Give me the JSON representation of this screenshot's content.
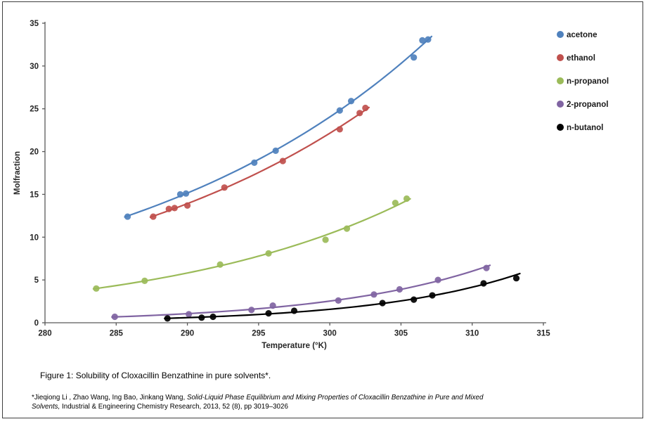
{
  "figure": {
    "caption": "Figure 1: Solubility of Cloxacillin Benzathine in pure solvents*.",
    "footnote_part1": "*Jieqiong Li , Zhao Wang, Ing Bao, Jinkang Wang, ",
    "footnote_part2_italic": "Solid-Liquid Phase Equilibrium and Mixing Properties of Cloxacillin Benzathine in Pure and Mixed",
    "footnote_part3_italic": "Solvents,",
    "footnote_part4": " Industrial & Engineering Chemistry Research, 2013, 52 (8), pp 3019–3026"
  },
  "chart_data": {
    "type": "scatter",
    "title": "",
    "xlabel": "Temperature (°K)",
    "ylabel": "Molfraction",
    "xlim": [
      280,
      315
    ],
    "ylim": [
      0,
      35
    ],
    "xticks": [
      280,
      285,
      290,
      295,
      300,
      305,
      310,
      315
    ],
    "yticks": [
      0,
      5,
      10,
      15,
      20,
      25,
      30,
      35
    ],
    "grid": false,
    "legend_position": "right",
    "trendline": "exponential",
    "axis_color": "#595959",
    "tick_label_color": "#262626",
    "series": [
      {
        "name": "acetone",
        "color": "#4F81BD",
        "points": [
          [
            285.8,
            12.4
          ],
          [
            289.5,
            15.0
          ],
          [
            289.9,
            15.1
          ],
          [
            294.7,
            18.7
          ],
          [
            296.2,
            20.1
          ],
          [
            300.7,
            24.8
          ],
          [
            301.5,
            25.9
          ],
          [
            305.9,
            31.0
          ],
          [
            306.5,
            33.0
          ],
          [
            306.9,
            33.1
          ]
        ]
      },
      {
        "name": "ethanol",
        "color": "#C0504D",
        "points": [
          [
            287.6,
            12.4
          ],
          [
            288.7,
            13.3
          ],
          [
            289.1,
            13.4
          ],
          [
            290.0,
            13.7
          ],
          [
            292.6,
            15.8
          ],
          [
            296.7,
            18.9
          ],
          [
            300.7,
            22.6
          ],
          [
            302.1,
            24.5
          ],
          [
            302.5,
            25.1
          ]
        ]
      },
      {
        "name": "n-propanol",
        "color": "#9BBB59",
        "points": [
          [
            283.6,
            4.0
          ],
          [
            287.0,
            4.9
          ],
          [
            292.3,
            6.8
          ],
          [
            295.7,
            8.1
          ],
          [
            299.7,
            9.7
          ],
          [
            301.2,
            11.0
          ],
          [
            304.6,
            14.0
          ],
          [
            305.4,
            14.5
          ]
        ]
      },
      {
        "name": "2-propanol",
        "color": "#8064A2",
        "points": [
          [
            284.9,
            0.7
          ],
          [
            290.1,
            1.0
          ],
          [
            294.5,
            1.5
          ],
          [
            296.0,
            2.0
          ],
          [
            300.6,
            2.6
          ],
          [
            303.1,
            3.3
          ],
          [
            304.9,
            3.9
          ],
          [
            307.6,
            5.0
          ],
          [
            311.0,
            6.4
          ]
        ]
      },
      {
        "name": "n-butanol",
        "color": "#000000",
        "points": [
          [
            288.6,
            0.5
          ],
          [
            291.0,
            0.6
          ],
          [
            291.8,
            0.7
          ],
          [
            295.7,
            1.1
          ],
          [
            297.5,
            1.4
          ],
          [
            303.7,
            2.3
          ],
          [
            305.9,
            2.7
          ],
          [
            307.2,
            3.2
          ],
          [
            310.8,
            4.6
          ],
          [
            313.1,
            5.2
          ]
        ]
      }
    ]
  }
}
